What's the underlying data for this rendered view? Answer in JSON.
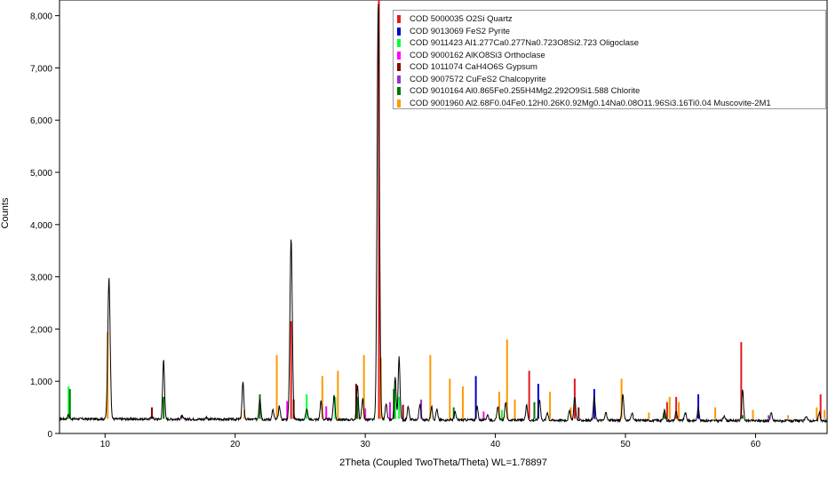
{
  "chart_data": {
    "type": "line",
    "title": "",
    "xlabel": "2Theta (Coupled TwoTheta/Theta) WL=1.78897",
    "ylabel": "Counts",
    "xlim": [
      6.5,
      65.5
    ],
    "ylim": [
      0,
      8300
    ],
    "x_ticks": [
      10,
      20,
      30,
      40,
      50,
      60
    ],
    "y_ticks": [
      {
        "v": 0,
        "label": "0"
      },
      {
        "v": 1000,
        "label": "1,000"
      },
      {
        "v": 2000,
        "label": "2,000"
      },
      {
        "v": 3000,
        "label": "3,000"
      },
      {
        "v": 4000,
        "label": "4,000"
      },
      {
        "v": 5000,
        "label": "5,000"
      },
      {
        "v": 6000,
        "label": "6,000"
      },
      {
        "v": 7000,
        "label": "7,000"
      },
      {
        "v": 8000,
        "label": "8,000"
      }
    ],
    "grid": false,
    "legend_position": "top-right",
    "pattern": {
      "name": "measured",
      "color": "#000000",
      "background": 280,
      "peaks": [
        {
          "x": 7.2,
          "y": 80
        },
        {
          "x": 10.3,
          "y": 2700
        },
        {
          "x": 13.6,
          "y": 50
        },
        {
          "x": 14.5,
          "y": 1150
        },
        {
          "x": 15.9,
          "y": 60
        },
        {
          "x": 17.8,
          "y": 40
        },
        {
          "x": 20.6,
          "y": 700
        },
        {
          "x": 21.9,
          "y": 400
        },
        {
          "x": 22.9,
          "y": 180
        },
        {
          "x": 23.4,
          "y": 250
        },
        {
          "x": 24.3,
          "y": 3450
        },
        {
          "x": 25.5,
          "y": 200
        },
        {
          "x": 26.6,
          "y": 350
        },
        {
          "x": 27.6,
          "y": 450
        },
        {
          "x": 29.4,
          "y": 650
        },
        {
          "x": 29.8,
          "y": 400
        },
        {
          "x": 31.0,
          "y": 8000
        },
        {
          "x": 31.6,
          "y": 300
        },
        {
          "x": 32.3,
          "y": 800
        },
        {
          "x": 32.6,
          "y": 1200
        },
        {
          "x": 33.3,
          "y": 250
        },
        {
          "x": 34.2,
          "y": 300
        },
        {
          "x": 35.1,
          "y": 250
        },
        {
          "x": 35.5,
          "y": 200
        },
        {
          "x": 36.9,
          "y": 150
        },
        {
          "x": 38.6,
          "y": 250
        },
        {
          "x": 39.4,
          "y": 100
        },
        {
          "x": 40.2,
          "y": 250
        },
        {
          "x": 40.8,
          "y": 350
        },
        {
          "x": 42.4,
          "y": 300
        },
        {
          "x": 43.4,
          "y": 400
        },
        {
          "x": 44.0,
          "y": 150
        },
        {
          "x": 45.7,
          "y": 180
        },
        {
          "x": 46.1,
          "y": 450
        },
        {
          "x": 47.6,
          "y": 450
        },
        {
          "x": 48.5,
          "y": 150
        },
        {
          "x": 49.8,
          "y": 500
        },
        {
          "x": 50.5,
          "y": 150
        },
        {
          "x": 53.0,
          "y": 200
        },
        {
          "x": 53.9,
          "y": 180
        },
        {
          "x": 54.6,
          "y": 150
        },
        {
          "x": 55.6,
          "y": 250
        },
        {
          "x": 57.6,
          "y": 100
        },
        {
          "x": 59.0,
          "y": 600
        },
        {
          "x": 61.2,
          "y": 150
        },
        {
          "x": 63.9,
          "y": 100
        },
        {
          "x": 64.9,
          "y": 150
        }
      ]
    },
    "series": [
      {
        "name": "COD 5000035 O2Si Quartz",
        "color": "#e41a1c",
        "sticks": [
          {
            "x": 24.3,
            "y": 2150
          },
          {
            "x": 31.05,
            "y": 8300
          },
          {
            "x": 42.6,
            "y": 1200
          },
          {
            "x": 46.1,
            "y": 1050
          },
          {
            "x": 53.2,
            "y": 600
          },
          {
            "x": 53.9,
            "y": 700
          },
          {
            "x": 58.9,
            "y": 1750
          },
          {
            "x": 65.0,
            "y": 750
          }
        ]
      },
      {
        "name": "COD 9013069 FeS2 Pyrite",
        "color": "#0000cc",
        "sticks": [
          {
            "x": 38.5,
            "y": 1100
          },
          {
            "x": 43.3,
            "y": 950
          },
          {
            "x": 47.6,
            "y": 850
          },
          {
            "x": 55.6,
            "y": 750
          }
        ]
      },
      {
        "name": "COD 9011423 Al1.277Ca0.277Na0.723O8Si2.723 Oligoclase",
        "color": "#00ff33",
        "sticks": [
          {
            "x": 7.2,
            "y": 900
          },
          {
            "x": 25.5,
            "y": 750
          },
          {
            "x": 27.7,
            "y": 700
          },
          {
            "x": 32.3,
            "y": 1000
          },
          {
            "x": 32.6,
            "y": 700
          },
          {
            "x": 40.5,
            "y": 450
          }
        ]
      },
      {
        "name": "COD 9000162 AlKO8Si3 Orthoclase",
        "color": "#ff00ff",
        "sticks": [
          {
            "x": 15.9,
            "y": 320
          },
          {
            "x": 24.0,
            "y": 620
          },
          {
            "x": 27.0,
            "y": 520
          },
          {
            "x": 30.0,
            "y": 480
          },
          {
            "x": 31.9,
            "y": 600
          },
          {
            "x": 39.1,
            "y": 420
          }
        ]
      },
      {
        "name": "COD 1011074 CaH4O6S Gypsum",
        "color": "#8b0000",
        "sticks": [
          {
            "x": 13.6,
            "y": 500
          },
          {
            "x": 24.5,
            "y": 650
          },
          {
            "x": 29.3,
            "y": 950
          },
          {
            "x": 32.9,
            "y": 550
          },
          {
            "x": 46.4,
            "y": 500
          }
        ]
      },
      {
        "name": "COD 9007572 CuFeS2 Chalcopyrite",
        "color": "#9933cc",
        "sticks": [
          {
            "x": 34.3,
            "y": 650
          },
          {
            "x": 57.5,
            "y": 300
          },
          {
            "x": 61.0,
            "y": 350
          }
        ]
      },
      {
        "name": "COD 9010164 Al0.865Fe0.255H4Mg2.292O9Si1.588 Chlorite",
        "color": "#007700",
        "sticks": [
          {
            "x": 7.3,
            "y": 850
          },
          {
            "x": 14.5,
            "y": 700
          },
          {
            "x": 21.9,
            "y": 750
          },
          {
            "x": 29.4,
            "y": 700
          },
          {
            "x": 32.2,
            "y": 850
          },
          {
            "x": 36.8,
            "y": 500
          },
          {
            "x": 43.0,
            "y": 600
          },
          {
            "x": 53.0,
            "y": 400
          },
          {
            "x": 59.0,
            "y": 350
          }
        ]
      },
      {
        "name": "COD  9001960  Al2.68F0.04Fe0.12H0.26K0.92Mg0.14Na0.08O11.96Si3.16Ti0.04  Muscovite-2M1",
        "color": "#ff9900",
        "sticks": [
          {
            "x": 10.2,
            "y": 1950
          },
          {
            "x": 20.7,
            "y": 450
          },
          {
            "x": 23.2,
            "y": 1500
          },
          {
            "x": 26.7,
            "y": 1100
          },
          {
            "x": 27.9,
            "y": 1200
          },
          {
            "x": 29.9,
            "y": 1500
          },
          {
            "x": 31.2,
            "y": 1450
          },
          {
            "x": 35.0,
            "y": 1500
          },
          {
            "x": 36.5,
            "y": 1050
          },
          {
            "x": 37.5,
            "y": 900
          },
          {
            "x": 40.3,
            "y": 800
          },
          {
            "x": 40.9,
            "y": 1800
          },
          {
            "x": 41.5,
            "y": 650
          },
          {
            "x": 44.2,
            "y": 800
          },
          {
            "x": 45.8,
            "y": 500
          },
          {
            "x": 49.7,
            "y": 1050
          },
          {
            "x": 51.8,
            "y": 400
          },
          {
            "x": 53.4,
            "y": 700
          },
          {
            "x": 54.1,
            "y": 600
          },
          {
            "x": 56.9,
            "y": 500
          },
          {
            "x": 59.8,
            "y": 450
          },
          {
            "x": 62.5,
            "y": 350
          },
          {
            "x": 64.7,
            "y": 500
          },
          {
            "x": 65.3,
            "y": 450
          }
        ]
      }
    ]
  }
}
